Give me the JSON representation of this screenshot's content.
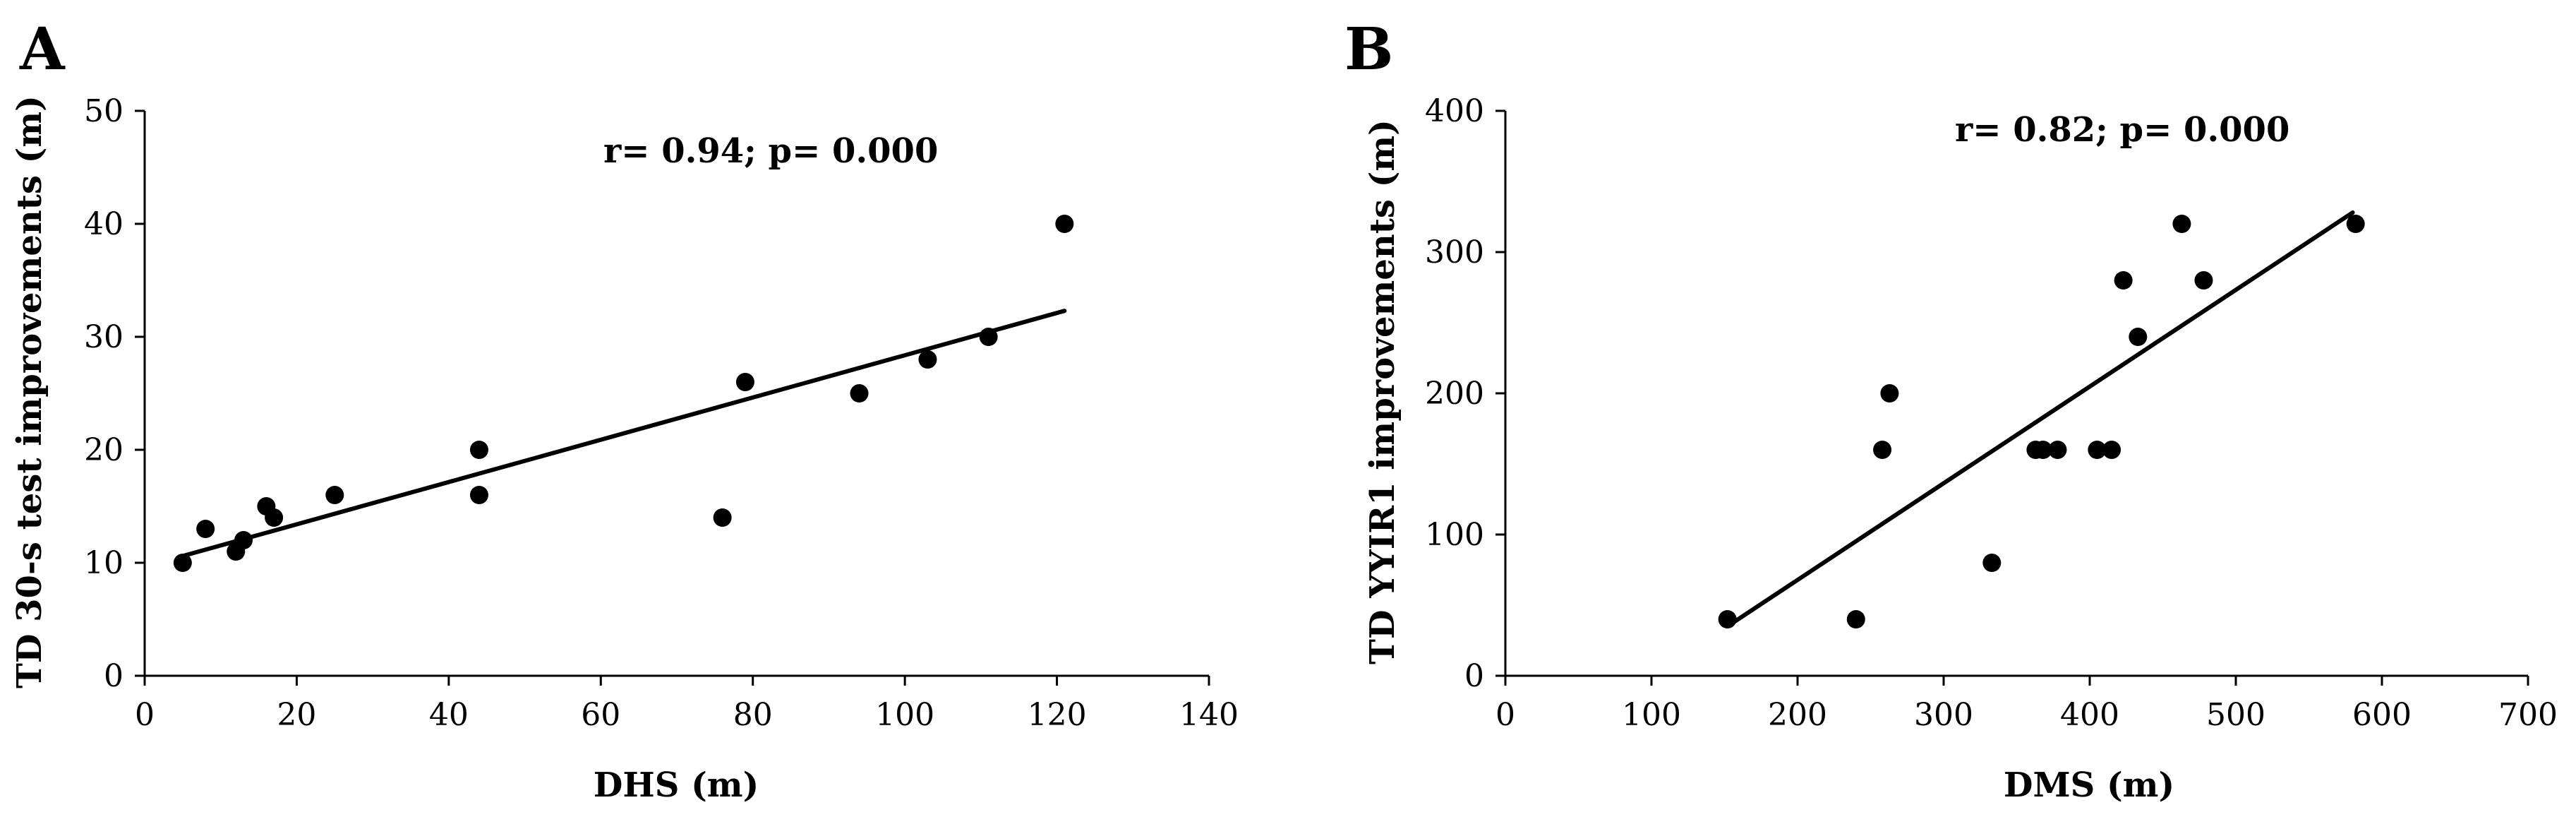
{
  "chart_data": [
    {
      "type": "scatter",
      "panel_label": "A",
      "annotation": "r= 0.94; p= 0.000",
      "xlabel": "DHS (m)",
      "ylabel": "TD 30-s test improvements (m)",
      "xlim": [
        0,
        140
      ],
      "ylim": [
        0,
        50
      ],
      "xticks": [
        0,
        20,
        40,
        60,
        80,
        100,
        120,
        140
      ],
      "yticks": [
        0,
        10,
        20,
        30,
        40,
        50
      ],
      "x": [
        5,
        8,
        12,
        13,
        16,
        17,
        25,
        44,
        44,
        76,
        79,
        94,
        103,
        111,
        121
      ],
      "y": [
        10,
        13,
        11,
        12,
        15,
        14,
        16,
        20,
        16,
        14,
        26,
        25,
        28,
        30,
        40
      ],
      "trendline": {
        "x": [
          5,
          121
        ],
        "y": [
          10.6,
          32.3
        ]
      },
      "grid": false,
      "legend": "none",
      "colors": {
        "points": "#000000",
        "line": "#000000",
        "axes": "#000000"
      }
    },
    {
      "type": "scatter",
      "panel_label": "B",
      "annotation": "r= 0.82; p= 0.000",
      "xlabel": "DMS (m)",
      "ylabel": "TD YYIR1 improvements (m)",
      "xlim": [
        0,
        700
      ],
      "ylim": [
        0,
        400
      ],
      "xticks": [
        0,
        100,
        200,
        300,
        400,
        500,
        600,
        700
      ],
      "yticks": [
        0,
        100,
        200,
        300,
        400
      ],
      "x": [
        152,
        240,
        258,
        263,
        333,
        363,
        368,
        378,
        405,
        415,
        423,
        433,
        463,
        478,
        582
      ],
      "y": [
        40,
        40,
        160,
        200,
        80,
        160,
        160,
        160,
        160,
        160,
        280,
        240,
        320,
        280,
        320
      ],
      "trendline": {
        "x": [
          152,
          580
        ],
        "y": [
          35,
          328
        ]
      },
      "grid": false,
      "legend": "none",
      "colors": {
        "points": "#000000",
        "line": "#000000",
        "axes": "#000000"
      }
    }
  ]
}
